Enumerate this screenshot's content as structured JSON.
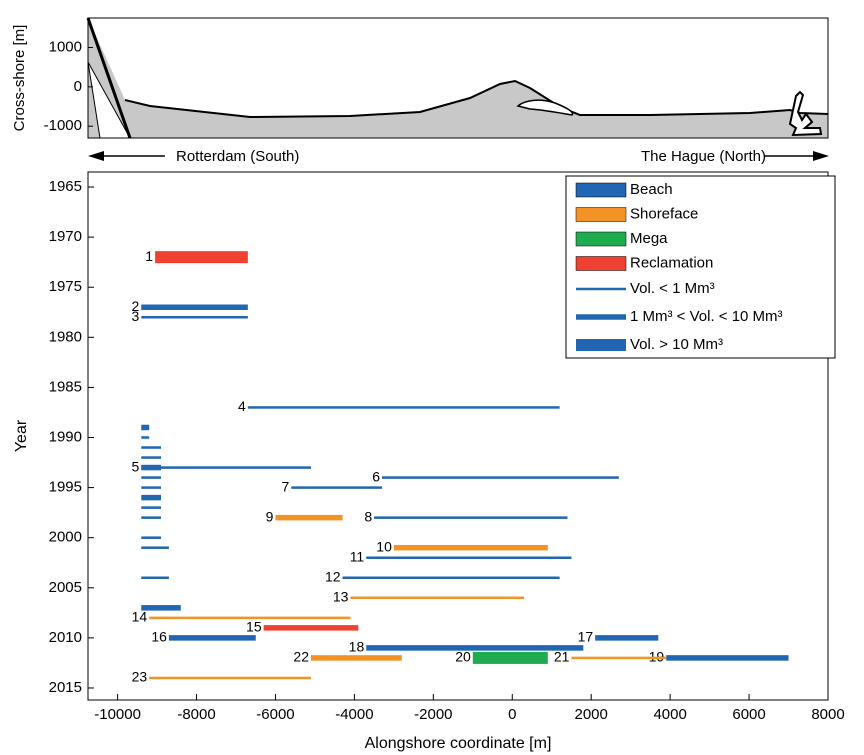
{
  "chart_data": [
    {
      "type": "map",
      "ylabel": "Cross-shore [m]",
      "ylim": [
        -1300,
        1750
      ],
      "yticks": [
        -1000,
        0,
        1000
      ],
      "annotations": [
        "Rotterdam (South)",
        "The Hague (North)"
      ]
    },
    {
      "type": "timeline",
      "xlabel": "Alongshore coordinate [m]",
      "ylabel": "Year",
      "xlim": [
        -10750,
        8000
      ],
      "xticks": [
        -10000,
        -8000,
        -6000,
        -4000,
        -2000,
        0,
        2000,
        4000,
        6000,
        8000
      ],
      "ylim": [
        1963.5,
        2016.2
      ],
      "yticks": [
        1965,
        1970,
        1975,
        1980,
        1985,
        1990,
        1995,
        2000,
        2005,
        2010,
        2015
      ],
      "y_inverted": true,
      "series": [
        {
          "name": "Beach",
          "color": "#2166b2"
        },
        {
          "name": "Shoreface",
          "color": "#f39325"
        },
        {
          "name": "Mega",
          "color": "#1fac4f"
        },
        {
          "name": "Reclamation",
          "color": "#ef4130"
        }
      ],
      "volume_classes": [
        "Vol. < 1 Mm³",
        "1 Mm³ < Vol. < 10 Mm³",
        "Vol. > 10 Mm³"
      ],
      "segments": [
        {
          "id": "1",
          "category": 3,
          "volume": 2,
          "year": 1972,
          "x": [
            -9050,
            -6700
          ]
        },
        {
          "id": "2",
          "category": 0,
          "volume": 1,
          "year": 1977,
          "x": [
            -9400,
            -6700
          ]
        },
        {
          "id": "3",
          "category": 0,
          "volume": 0,
          "year": 1978,
          "x": [
            -9400,
            -6700
          ]
        },
        {
          "id": "4",
          "category": 0,
          "volume": 0,
          "year": 1987,
          "x": [
            -6700,
            1200
          ]
        },
        {
          "category": 0,
          "volume": 1,
          "year": 1989,
          "x": [
            -9400,
            -9200
          ]
        },
        {
          "category": 0,
          "volume": 0,
          "year": 1990,
          "x": [
            -9400,
            -9200
          ]
        },
        {
          "category": 0,
          "volume": 0,
          "year": 1991,
          "x": [
            -9400,
            -8900
          ]
        },
        {
          "category": 0,
          "volume": 0,
          "year": 1992,
          "x": [
            -9400,
            -8900
          ]
        },
        {
          "category": 0,
          "volume": 1,
          "year": 1993,
          "x": [
            -9400,
            -8900
          ]
        },
        {
          "id": "5",
          "category": 0,
          "volume": 0,
          "year": 1993,
          "x": [
            -9400,
            -5100
          ]
        },
        {
          "category": 0,
          "volume": 0,
          "year": 1994,
          "x": [
            -9400,
            -8900
          ]
        },
        {
          "category": 0,
          "volume": 0,
          "year": 1995,
          "x": [
            -9400,
            -8900
          ]
        },
        {
          "category": 0,
          "volume": 1,
          "year": 1996,
          "x": [
            -9400,
            -8900
          ]
        },
        {
          "category": 0,
          "volume": 0,
          "year": 1997,
          "x": [
            -9400,
            -8900
          ]
        },
        {
          "category": 0,
          "volume": 0,
          "year": 1998,
          "x": [
            -9400,
            -8900
          ]
        },
        {
          "category": 0,
          "volume": 0,
          "year": 2000,
          "x": [
            -9400,
            -8900
          ]
        },
        {
          "category": 0,
          "volume": 0,
          "year": 2001,
          "x": [
            -9400,
            -8700
          ]
        },
        {
          "category": 0,
          "volume": 0,
          "year": 2004,
          "x": [
            -9400,
            -8700
          ]
        },
        {
          "category": 0,
          "volume": 1,
          "year": 2007,
          "x": [
            -9400,
            -8400
          ]
        },
        {
          "id": "6",
          "category": 0,
          "volume": 0,
          "year": 1994,
          "x": [
            -3300,
            2700
          ]
        },
        {
          "id": "7",
          "category": 0,
          "volume": 0,
          "year": 1995,
          "x": [
            -5600,
            -3300
          ]
        },
        {
          "id": "8",
          "category": 0,
          "volume": 0,
          "year": 1998,
          "x": [
            -3500,
            1400
          ]
        },
        {
          "id": "9",
          "category": 1,
          "volume": 1,
          "year": 1998,
          "x": [
            -6000,
            -4300
          ]
        },
        {
          "id": "10",
          "category": 1,
          "volume": 1,
          "year": 2001,
          "x": [
            -3000,
            900
          ]
        },
        {
          "id": "11",
          "category": 0,
          "volume": 0,
          "year": 2002,
          "x": [
            -3700,
            1500
          ]
        },
        {
          "id": "12",
          "category": 0,
          "volume": 0,
          "year": 2004,
          "x": [
            -4300,
            1200
          ]
        },
        {
          "id": "13",
          "category": 1,
          "volume": 0,
          "year": 2006,
          "x": [
            -4100,
            300
          ]
        },
        {
          "id": "14",
          "category": 1,
          "volume": 0,
          "year": 2008,
          "x": [
            -9200,
            -4100
          ]
        },
        {
          "id": "15",
          "category": 3,
          "volume": 1,
          "year": 2009,
          "x": [
            -6300,
            -3900
          ]
        },
        {
          "id": "16",
          "category": 0,
          "volume": 1,
          "year": 2010,
          "x": [
            -8700,
            -6500
          ]
        },
        {
          "id": "17",
          "category": 0,
          "volume": 1,
          "year": 2010,
          "x": [
            2100,
            3700
          ]
        },
        {
          "id": "18",
          "category": 0,
          "volume": 1,
          "year": 2011,
          "x": [
            -3700,
            1800
          ]
        },
        {
          "id": "19",
          "category": 0,
          "volume": 1,
          "year": 2012,
          "x": [
            3900,
            7000
          ]
        },
        {
          "id": "20",
          "category": 2,
          "volume": 2,
          "year": 2012,
          "x": [
            -1000,
            900
          ]
        },
        {
          "id": "21",
          "category": 1,
          "volume": 0,
          "year": 2012,
          "x": [
            1500,
            3900
          ]
        },
        {
          "id": "22",
          "category": 1,
          "volume": 1,
          "year": 2012,
          "x": [
            -5100,
            -2800
          ]
        },
        {
          "id": "23",
          "category": 1,
          "volume": 0,
          "year": 2014,
          "x": [
            -9200,
            -5100
          ]
        }
      ]
    }
  ]
}
